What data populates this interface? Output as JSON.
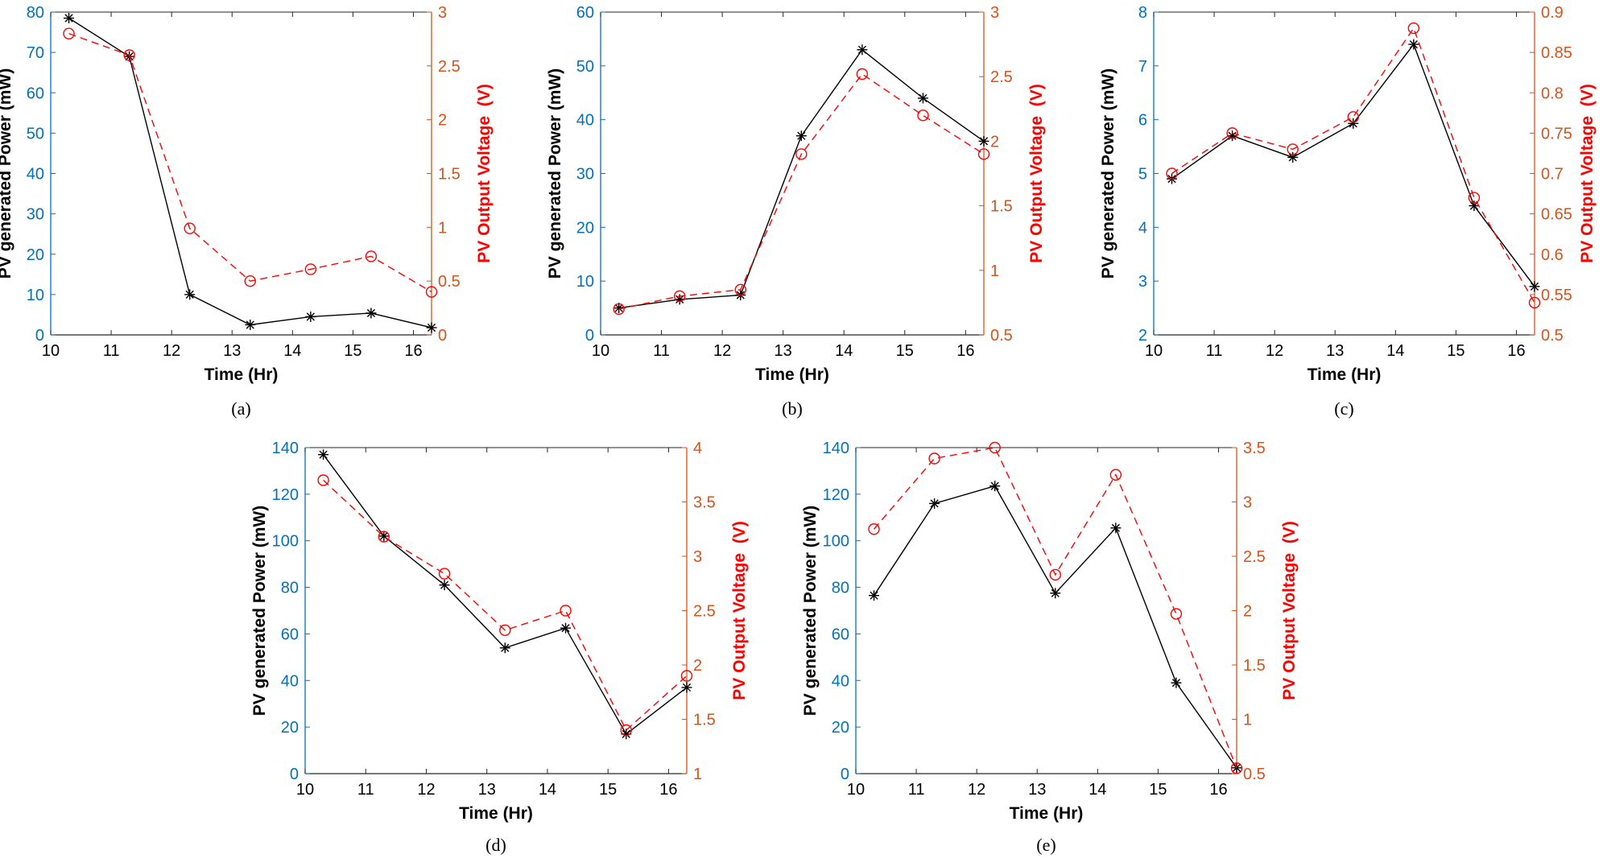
{
  "colors": {
    "power_line": "#000000",
    "voltage_line": "#ff0000",
    "left_axis": "#0072bd",
    "right_axis": "#d95319"
  },
  "chart_data": [
    {
      "type": "line",
      "caption": "(a)",
      "xlabel": "Time (Hr)",
      "ylabel_left": "PV generated Power (mW)",
      "ylabel_right": "PV Output Voltage  (V)",
      "xlim": [
        10,
        16.3
      ],
      "xticks": [
        10,
        11,
        12,
        13,
        14,
        15,
        16
      ],
      "ylim_left": [
        0,
        80
      ],
      "yticks_left": [
        0,
        10,
        20,
        30,
        40,
        50,
        60,
        70,
        80
      ],
      "ylim_right": [
        0,
        3
      ],
      "yticks_right": [
        0,
        0.5,
        1,
        1.5,
        2,
        2.5,
        3
      ],
      "x": [
        10.3,
        11.3,
        12.3,
        13.3,
        14.3,
        15.3,
        16.3
      ],
      "series": [
        {
          "name": "PV generated Power",
          "axis": "left",
          "marker": "asterisk",
          "style": "solid",
          "values": [
            78.5,
            69,
            10,
            2.5,
            4.5,
            5.4,
            1.8
          ]
        },
        {
          "name": "PV Output Voltage",
          "axis": "right",
          "marker": "circle",
          "style": "dashed",
          "values": [
            2.8,
            2.6,
            0.99,
            0.5,
            0.61,
            0.73,
            0.4
          ]
        }
      ]
    },
    {
      "type": "line",
      "caption": "(b)",
      "xlabel": "Time (Hr)",
      "ylabel_left": "PV generated Power (mW)",
      "ylabel_right": "PV Output Voltage  (V)",
      "xlim": [
        10,
        16.3
      ],
      "xticks": [
        10,
        11,
        12,
        13,
        14,
        15,
        16
      ],
      "ylim_left": [
        0,
        60
      ],
      "yticks_left": [
        0,
        10,
        20,
        30,
        40,
        50,
        60
      ],
      "ylim_right": [
        0.5,
        3
      ],
      "yticks_right": [
        0.5,
        1,
        1.5,
        2,
        2.5,
        3
      ],
      "x": [
        10.3,
        11.3,
        12.3,
        13.3,
        14.3,
        15.3,
        16.3
      ],
      "series": [
        {
          "name": "PV generated Power",
          "axis": "left",
          "marker": "asterisk",
          "style": "solid",
          "values": [
            5,
            6.6,
            7.4,
            37,
            53,
            44,
            36
          ]
        },
        {
          "name": "PV Output Voltage",
          "axis": "right",
          "marker": "circle",
          "style": "dashed",
          "values": [
            0.7,
            0.8,
            0.85,
            1.9,
            2.52,
            2.2,
            1.9
          ]
        }
      ]
    },
    {
      "type": "line",
      "caption": "(c)",
      "xlabel": "Time (Hr)",
      "ylabel_left": "PV generated Power (mW)",
      "ylabel_right": "PV Output Voltage  (V)",
      "xlim": [
        10,
        16.3
      ],
      "xticks": [
        10,
        11,
        12,
        13,
        14,
        15,
        16
      ],
      "ylim_left": [
        2,
        8
      ],
      "yticks_left": [
        2,
        3,
        4,
        5,
        6,
        7,
        8
      ],
      "ylim_right": [
        0.5,
        0.9
      ],
      "yticks_right": [
        0.5,
        0.55,
        0.6,
        0.65,
        0.7,
        0.75,
        0.8,
        0.85,
        0.9
      ],
      "x": [
        10.3,
        11.3,
        12.3,
        13.3,
        14.3,
        15.3,
        16.3
      ],
      "series": [
        {
          "name": "PV generated Power",
          "axis": "left",
          "marker": "asterisk",
          "style": "solid",
          "values": [
            4.9,
            5.7,
            5.3,
            5.93,
            7.4,
            4.4,
            2.9
          ]
        },
        {
          "name": "PV Output Voltage",
          "axis": "right",
          "marker": "circle",
          "style": "dashed",
          "values": [
            0.7,
            0.75,
            0.73,
            0.77,
            0.88,
            0.67,
            0.54
          ]
        }
      ]
    },
    {
      "type": "line",
      "caption": "(d)",
      "xlabel": "Time (Hr)",
      "ylabel_left": "PV generated Power (mW)",
      "ylabel_right": "PV Output Voltage  (V)",
      "xlim": [
        10,
        16.3
      ],
      "xticks": [
        10,
        11,
        12,
        13,
        14,
        15,
        16
      ],
      "ylim_left": [
        0,
        140
      ],
      "yticks_left": [
        0,
        20,
        40,
        60,
        80,
        100,
        120,
        140
      ],
      "ylim_right": [
        1,
        4
      ],
      "yticks_right": [
        1,
        1.5,
        2,
        2.5,
        3,
        3.5,
        4
      ],
      "x": [
        10.3,
        11.3,
        12.3,
        13.3,
        14.3,
        15.3,
        16.3
      ],
      "series": [
        {
          "name": "PV generated Power",
          "axis": "left",
          "marker": "asterisk",
          "style": "solid",
          "values": [
            137,
            102,
            81,
            54,
            62.5,
            17,
            37
          ]
        },
        {
          "name": "PV Output Voltage",
          "axis": "right",
          "marker": "circle",
          "style": "dashed",
          "values": [
            3.7,
            3.18,
            2.84,
            2.32,
            2.5,
            1.4,
            1.9
          ]
        }
      ]
    },
    {
      "type": "line",
      "caption": "(e)",
      "xlabel": "Time (Hr)",
      "ylabel_left": "PV generated Power (mW)",
      "ylabel_right": "PV Output Voltage  (V)",
      "xlim": [
        10,
        16.3
      ],
      "xticks": [
        10,
        11,
        12,
        13,
        14,
        15,
        16
      ],
      "ylim_left": [
        0,
        140
      ],
      "yticks_left": [
        0,
        20,
        40,
        60,
        80,
        100,
        120,
        140
      ],
      "ylim_right": [
        0.5,
        3.5
      ],
      "yticks_right": [
        0.5,
        1,
        1.5,
        2,
        2.5,
        3,
        3.5
      ],
      "x": [
        10.3,
        11.3,
        12.3,
        13.3,
        14.3,
        15.3,
        16.3
      ],
      "series": [
        {
          "name": "PV generated Power",
          "axis": "left",
          "marker": "asterisk",
          "style": "solid",
          "values": [
            76.5,
            116,
            123.5,
            77.5,
            105.5,
            39,
            2.5
          ]
        },
        {
          "name": "PV Output Voltage",
          "axis": "right",
          "marker": "circle",
          "style": "dashed",
          "values": [
            2.75,
            3.4,
            3.5,
            2.33,
            3.25,
            1.97,
            0.55
          ]
        }
      ]
    }
  ]
}
